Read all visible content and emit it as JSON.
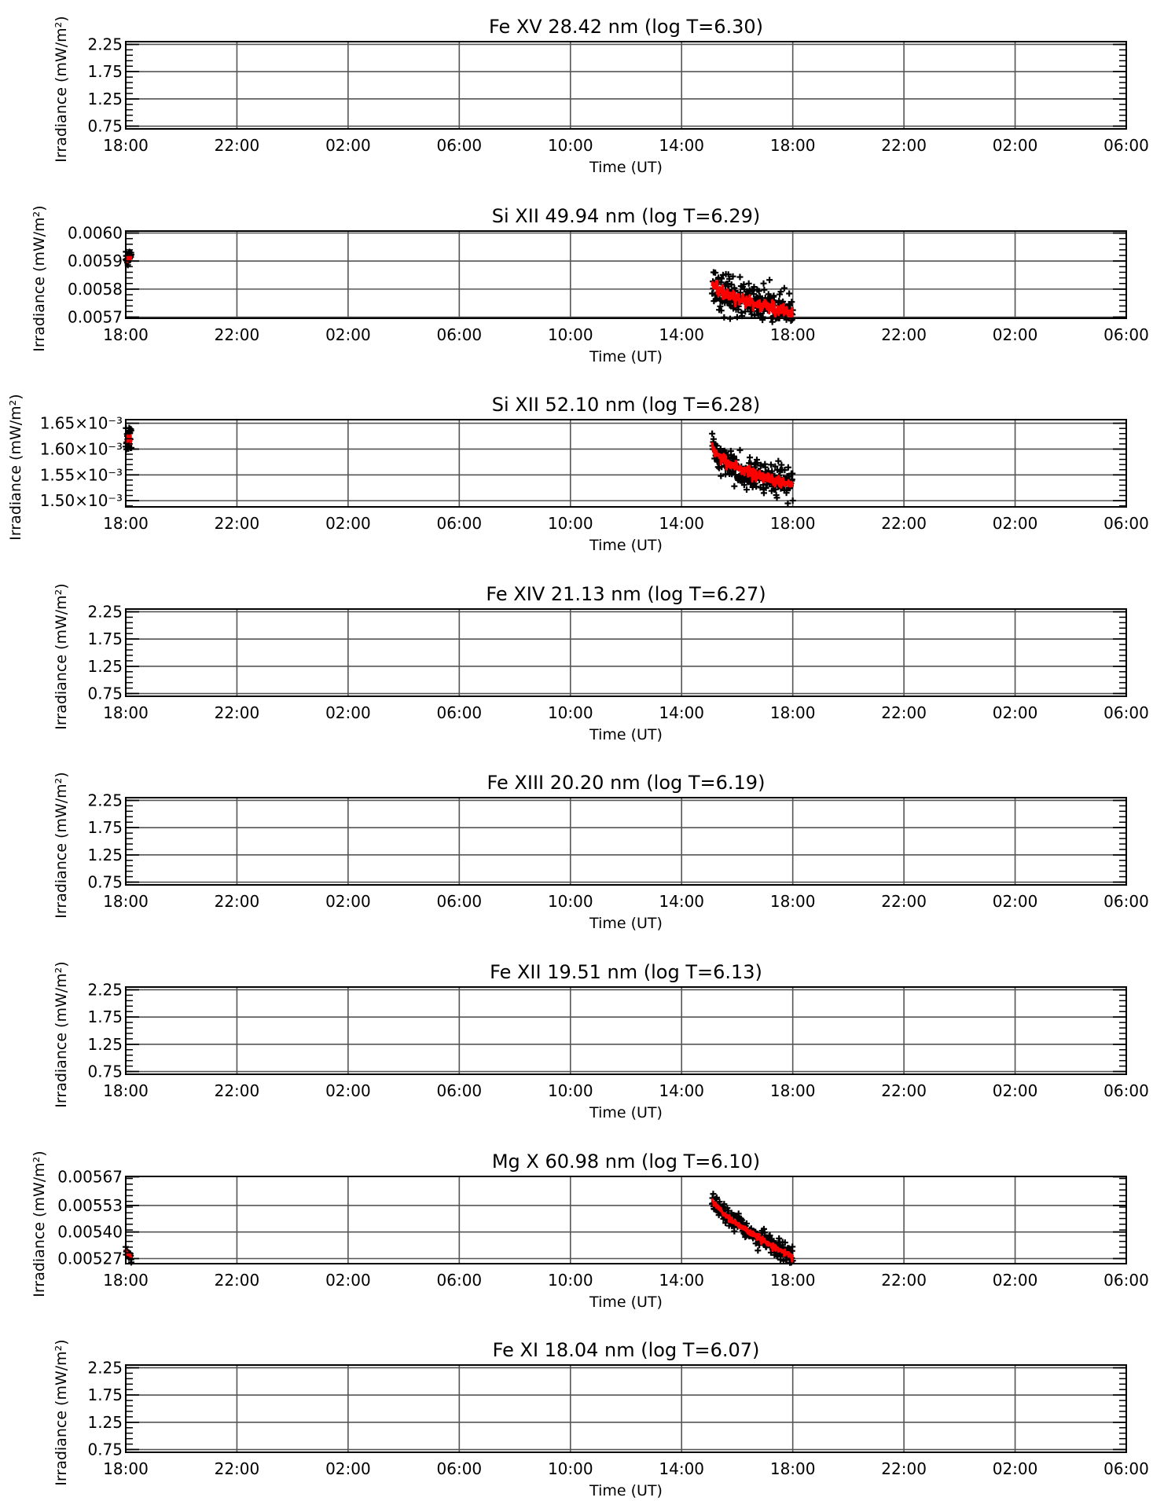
{
  "figure": {
    "x_label": "Time (UT)",
    "y_label": "Irradiance (mW/m²)",
    "x_ticks": [
      "18:00",
      "22:00",
      "02:00",
      "06:00",
      "10:00",
      "14:00",
      "18:00",
      "22:00",
      "02:00",
      "06:00"
    ],
    "x_range_hours": [
      0,
      36
    ],
    "colors": {
      "measurement": "#000000",
      "smoothed": "#ff0000",
      "grid": "#555555",
      "axes": "#000000"
    }
  },
  "chart_data": [
    {
      "type": "scatter",
      "title": "Fe XV 28.42 nm (log T=6.30)",
      "ylabel": "Irradiance (mW/m²)",
      "y_ticks": [
        "2.25",
        "1.75",
        "1.25",
        "0.75"
      ],
      "y_tick_values": [
        2.25,
        1.75,
        1.25,
        0.75
      ],
      "ylim": [
        0.7,
        2.3
      ],
      "segments": []
    },
    {
      "type": "scatter",
      "title": "Si XII 49.94 nm (log T=6.29)",
      "ylabel": "Irradiance (mW/m²)",
      "y_ticks": [
        "0.0060",
        "0.0059",
        "0.0058",
        "0.0057"
      ],
      "y_tick_values": [
        0.006,
        0.0059,
        0.0058,
        0.0057
      ],
      "ylim": [
        0.005696,
        0.006007
      ],
      "segments": [
        {
          "x_start": 0,
          "x_end": 0.2,
          "n": 22,
          "y_start": 0.00591,
          "y_end": 0.00591,
          "scatter": 1.8e-05,
          "smooth_bump": 0,
          "seed": 11
        },
        {
          "x_start": 21.1,
          "x_end": 24.0,
          "n": 230,
          "y_start": 0.0058,
          "y_end": 0.005715,
          "scatter": 3.2e-05,
          "smooth_bump": 2e-05,
          "seed": 23
        }
      ]
    },
    {
      "type": "scatter",
      "title": "Si XII 52.10 nm (log T=6.28)",
      "ylabel": "Irradiance (mW/m²)",
      "y_ticks": [
        "1.65×10⁻³",
        "1.60×10⁻³",
        "1.55×10⁻³",
        "1.50×10⁻³"
      ],
      "y_tick_values": [
        0.00165,
        0.0016,
        0.00155,
        0.0015
      ],
      "ylim": [
        0.001488,
        0.001657
      ],
      "segments": [
        {
          "x_start": 0,
          "x_end": 0.2,
          "n": 22,
          "y_start": 0.001618,
          "y_end": 0.001618,
          "scatter": 1.2e-05,
          "smooth_bump": 0,
          "seed": 37
        },
        {
          "x_start": 21.1,
          "x_end": 24.0,
          "n": 230,
          "y_start": 0.001585,
          "y_end": 0.00153,
          "scatter": 1.5e-05,
          "smooth_bump": 2e-05,
          "seed": 41
        }
      ]
    },
    {
      "type": "scatter",
      "title": "Fe XIV 21.13 nm (log T=6.27)",
      "ylabel": "Irradiance (mW/m²)",
      "y_ticks": [
        "2.25",
        "1.75",
        "1.25",
        "0.75"
      ],
      "y_tick_values": [
        2.25,
        1.75,
        1.25,
        0.75
      ],
      "ylim": [
        0.7,
        2.3
      ],
      "segments": []
    },
    {
      "type": "scatter",
      "title": "Fe XIII 20.20 nm (log T=6.19)",
      "ylabel": "Irradiance (mW/m²)",
      "y_ticks": [
        "2.25",
        "1.75",
        "1.25",
        "0.75"
      ],
      "y_tick_values": [
        2.25,
        1.75,
        1.25,
        0.75
      ],
      "ylim": [
        0.7,
        2.3
      ],
      "segments": []
    },
    {
      "type": "scatter",
      "title": "Fe XII 19.51 nm (log T=6.13)",
      "ylabel": "Irradiance (mW/m²)",
      "y_ticks": [
        "2.25",
        "1.75",
        "1.25",
        "0.75"
      ],
      "y_tick_values": [
        2.25,
        1.75,
        1.25,
        0.75
      ],
      "ylim": [
        0.7,
        2.3
      ],
      "segments": []
    },
    {
      "type": "scatter",
      "title": "Mg X 60.98 nm (log T=6.10)",
      "ylabel": "Irradiance (mW/m²)",
      "y_ticks": [
        "0.00567",
        "0.00553",
        "0.00540",
        "0.00527"
      ],
      "y_tick_values": [
        0.00567,
        0.00553,
        0.0054,
        0.00527
      ],
      "ylim": [
        0.005245,
        0.005672
      ],
      "segments": [
        {
          "x_start": 0,
          "x_end": 0.2,
          "n": 18,
          "y_start": 0.00531,
          "y_end": 0.00528,
          "scatter": 1.2e-05,
          "smooth_bump": 0,
          "seed": 53
        },
        {
          "x_start": 21.1,
          "x_end": 24.0,
          "n": 230,
          "y_start": 0.00555,
          "y_end": 0.00528,
          "scatter": 2.2e-05,
          "smooth_bump": 1e-05,
          "seed": 67
        }
      ]
    },
    {
      "type": "scatter",
      "title": "Fe XI 18.04 nm (log T=6.07)",
      "ylabel": "Irradiance (mW/m²)",
      "y_ticks": [
        "2.25",
        "1.75",
        "1.25",
        "0.75"
      ],
      "y_tick_values": [
        2.25,
        1.75,
        1.25,
        0.75
      ],
      "ylim": [
        0.7,
        2.3
      ],
      "segments": []
    }
  ]
}
